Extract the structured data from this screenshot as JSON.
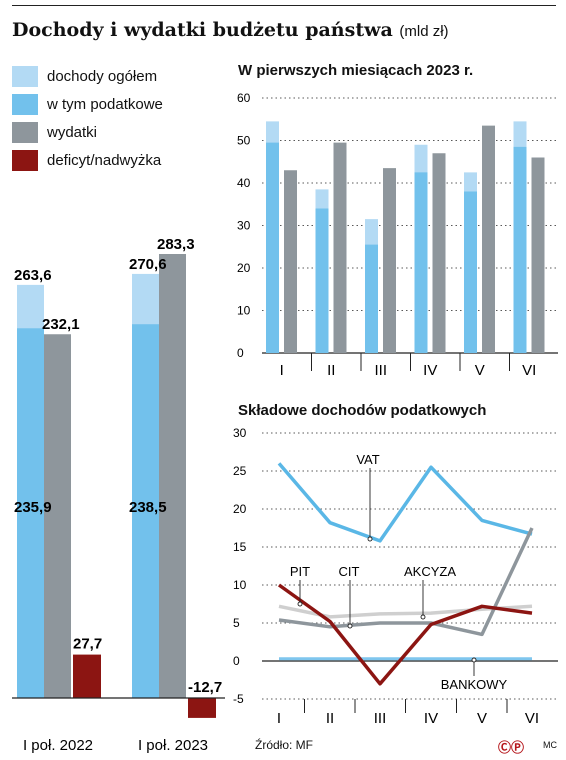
{
  "header": {
    "title": "Dochody i wydatki budżetu państwa",
    "unit": "(mld zł)"
  },
  "legend": [
    {
      "label": "dochody ogółem",
      "color": "#b3daf4"
    },
    {
      "label": "w tym podatkowe",
      "color": "#72c1ec"
    },
    {
      "label": "wydatki",
      "color": "#8e969c"
    },
    {
      "label": "deficyt/nadwyżka",
      "color": "#8c1512"
    }
  ],
  "footer": {
    "source": "Źródło: MF",
    "logo": "ⒸⓅ",
    "initials": "MC"
  },
  "chart_data": [
    {
      "type": "bar",
      "categories": [
        "I poł. 2022",
        "I poł. 2023"
      ],
      "series": [
        {
          "name": "dochody ogółem",
          "values": [
            263.6,
            270.6
          ],
          "labels": [
            "263,6",
            "270,6"
          ]
        },
        {
          "name": "w tym podatkowe",
          "values": [
            235.9,
            238.5
          ],
          "labels": [
            "235,9",
            "238,5"
          ]
        },
        {
          "name": "wydatki",
          "values": [
            232.1,
            283.3
          ],
          "labels": [
            "232,1",
            "283,3"
          ]
        },
        {
          "name": "deficyt/nadwyżka",
          "values": [
            27.7,
            -12.7
          ],
          "labels": [
            "27,7",
            "-12,7"
          ]
        }
      ]
    },
    {
      "type": "bar",
      "title": "W pierwszych miesiącach 2023 r.",
      "categories": [
        "I",
        "II",
        "III",
        "IV",
        "V",
        "VI"
      ],
      "yticks": [
        "0",
        "10",
        "20",
        "30",
        "40",
        "50",
        "60"
      ],
      "ylim": [
        0,
        60
      ],
      "series": [
        {
          "name": "dochody ogółem",
          "values": [
            54.5,
            38.5,
            31.5,
            49,
            42.5,
            54.5
          ]
        },
        {
          "name": "w tym podatkowe",
          "values": [
            49.5,
            34,
            25.5,
            42.5,
            38,
            48.5
          ]
        },
        {
          "name": "wydatki",
          "values": [
            43,
            49.5,
            43.5,
            47,
            53.5,
            46
          ]
        }
      ]
    },
    {
      "type": "line",
      "title": "Składowe dochodów podatkowych",
      "categories": [
        "I",
        "II",
        "III",
        "IV",
        "V",
        "VI"
      ],
      "yticks": [
        "-5",
        "0",
        "5",
        "10",
        "15",
        "20",
        "25",
        "30"
      ],
      "ylim": [
        -5,
        30
      ],
      "series": [
        {
          "name": "VAT",
          "values": [
            26,
            18.2,
            15.8,
            25.5,
            18.5,
            16.7
          ]
        },
        {
          "name": "AKCYZA",
          "values": [
            7.2,
            5.8,
            6.2,
            6.3,
            6.8,
            7.2
          ]
        },
        {
          "name": "CIT",
          "values": [
            5.4,
            4.5,
            5,
            5,
            3.5,
            17.5
          ]
        },
        {
          "name": "PIT",
          "values": [
            10,
            5.2,
            -3,
            4.8,
            7.2,
            6.3
          ]
        },
        {
          "name": "BANKOWY",
          "values": [
            0.3,
            0.3,
            0.3,
            0.3,
            0.3,
            0.3
          ]
        }
      ],
      "annotations": [
        "VAT",
        "PIT",
        "CIT",
        "AKCYZA",
        "BANKOWY"
      ]
    }
  ]
}
